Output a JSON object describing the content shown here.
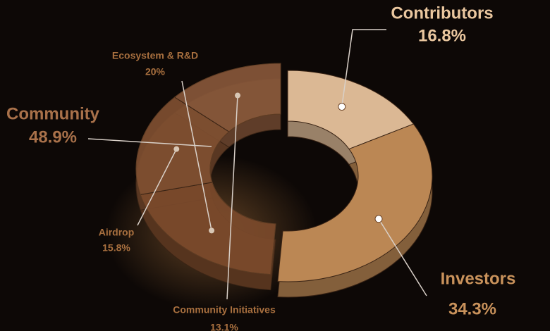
{
  "chart_data": {
    "type": "donut3d",
    "categories": [
      "Contributors",
      "Investors",
      "Ecosystem & R&D",
      "Airdrop",
      "Community Initiatives"
    ],
    "values": [
      16.8,
      34.3,
      20,
      15.8,
      13.1
    ],
    "value_labels": [
      "16.8%",
      "34.3%",
      "20%",
      "15.8%",
      "13.1%"
    ],
    "colors": [
      "#dbb894",
      "#bb8754",
      "#7b4a2b",
      "#7f4f31",
      "#87573a"
    ],
    "groups": [
      {
        "name": "Community",
        "value": 48.9,
        "value_label": "48.9%",
        "members": [
          2,
          3,
          4
        ]
      }
    ]
  }
}
